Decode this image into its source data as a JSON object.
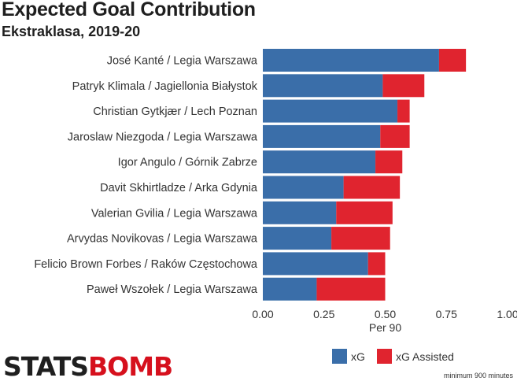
{
  "header": {
    "title": "Expected Goal Contribution",
    "subtitle": "Ekstraklasa, 2019-20"
  },
  "footer": {
    "logo_part1": "STATS",
    "logo_part2": "BOMB",
    "note": "minimum 900 minutes"
  },
  "colors": {
    "xg": "#3a6ea9",
    "xa": "#e0242f"
  },
  "chart_data": {
    "type": "bar",
    "orientation": "horizontal",
    "stacked": true,
    "title": "Expected Goal Contribution",
    "subtitle": "Ekstraklasa, 2019-20",
    "xlabel": "Per 90",
    "ylabel": "",
    "xlim": [
      0,
      1.0
    ],
    "xticks": [
      "0.00",
      "0.25",
      "0.50",
      "0.75",
      "1.00"
    ],
    "grid": false,
    "legend": {
      "position": "bottom-right",
      "entries": [
        "xG",
        "xG Assisted"
      ]
    },
    "categories": [
      "José Kanté / Legia Warszawa",
      "Patryk Klimala / Jagiellonia Białystok",
      "Christian Gytkjær / Lech Poznan",
      "Jaroslaw Niezgoda / Legia Warszawa",
      "Igor Angulo / Górnik Zabrze",
      "Davit Skhirtladze / Arka Gdynia",
      "Valerian Gvilia / Legia Warszawa",
      "Arvydas Novikovas / Legia Warszawa",
      "Felicio Brown Forbes / Raków Częstochowa",
      "Paweł Wszołek / Legia Warszawa"
    ],
    "series": [
      {
        "name": "xG",
        "values": [
          0.72,
          0.49,
          0.55,
          0.48,
          0.46,
          0.33,
          0.3,
          0.28,
          0.43,
          0.22
        ]
      },
      {
        "name": "xG Assisted",
        "values": [
          0.11,
          0.17,
          0.05,
          0.12,
          0.11,
          0.23,
          0.23,
          0.24,
          0.07,
          0.28
        ]
      }
    ]
  }
}
